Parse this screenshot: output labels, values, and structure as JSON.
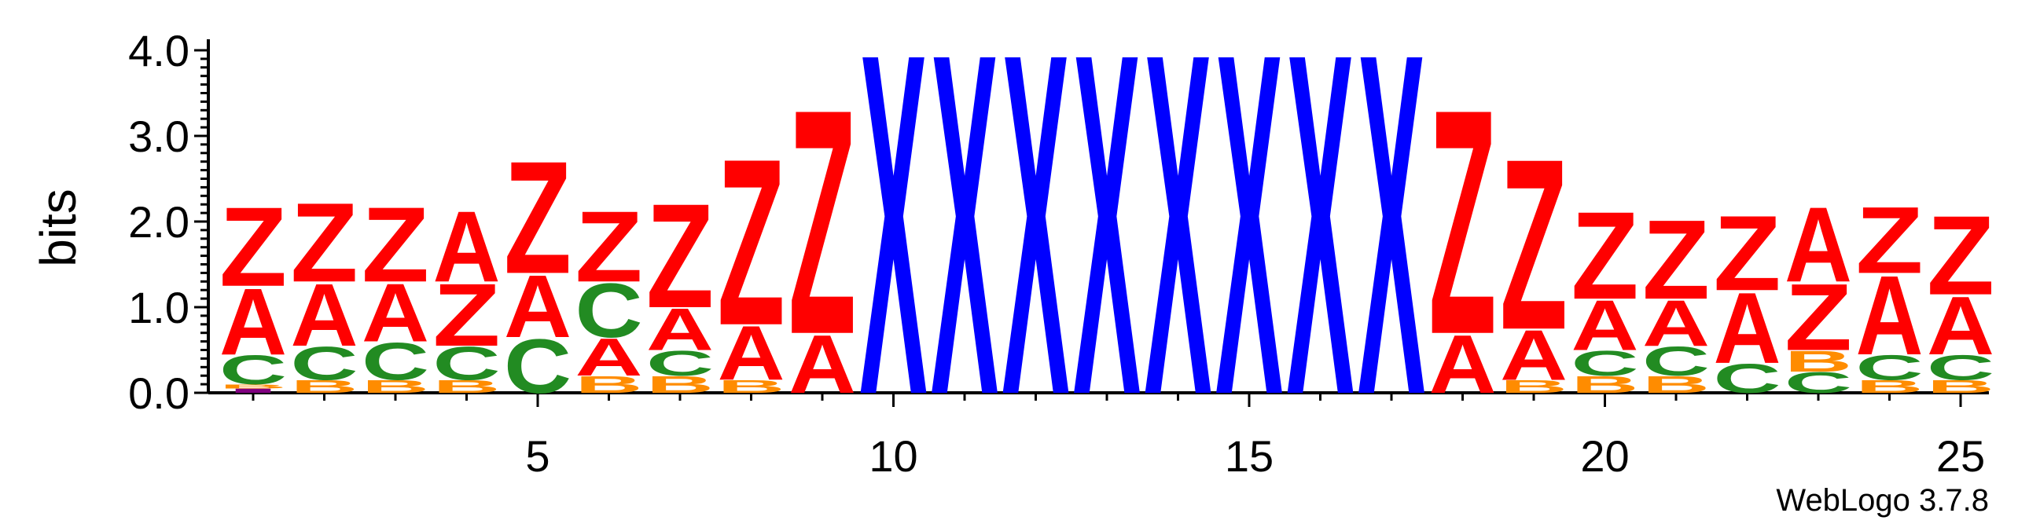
{
  "chart_data": {
    "type": "sequence-logo",
    "title": "",
    "xlabel": "",
    "ylabel": "bits",
    "ylim": [
      0,
      4.1
    ],
    "y_ticks": [
      "0.0",
      "1.0",
      "2.0",
      "3.0",
      "4.0"
    ],
    "x_ticks": [
      "5",
      "10",
      "15",
      "20",
      "25"
    ],
    "footer": "WebLogo 3.7.8",
    "colors": {
      "A": "#ff0000",
      "Z": "#ff0000",
      "C": "#228b22",
      "B": "#ff8c00",
      "X": "#0000ff",
      "I": "#800080"
    },
    "positions": [
      {
        "pos": 1,
        "stack": [
          {
            "l": "I",
            "h": 0.05
          },
          {
            "l": "B",
            "h": 0.05
          },
          {
            "l": "C",
            "h": 0.35
          },
          {
            "l": "A",
            "h": 0.8
          },
          {
            "l": "Z",
            "h": 0.95
          }
        ]
      },
      {
        "pos": 2,
        "stack": [
          {
            "l": "B",
            "h": 0.15
          },
          {
            "l": "C",
            "h": 0.4
          },
          {
            "l": "A",
            "h": 0.75
          },
          {
            "l": "Z",
            "h": 0.95
          }
        ]
      },
      {
        "pos": 3,
        "stack": [
          {
            "l": "B",
            "h": 0.15
          },
          {
            "l": "C",
            "h": 0.45
          },
          {
            "l": "A",
            "h": 0.7
          },
          {
            "l": "Z",
            "h": 0.9
          }
        ]
      },
      {
        "pos": 4,
        "stack": [
          {
            "l": "B",
            "h": 0.15
          },
          {
            "l": "C",
            "h": 0.4
          },
          {
            "l": "Z",
            "h": 0.75
          },
          {
            "l": "A",
            "h": 0.85
          }
        ]
      },
      {
        "pos": 5,
        "stack": [
          {
            "l": "C",
            "h": 0.65
          },
          {
            "l": "A",
            "h": 0.75
          },
          {
            "l": "Z",
            "h": 1.35
          }
        ]
      },
      {
        "pos": 6,
        "stack": [
          {
            "l": "B",
            "h": 0.2
          },
          {
            "l": "A",
            "h": 0.45
          },
          {
            "l": "C",
            "h": 0.65
          },
          {
            "l": "Z",
            "h": 0.85
          }
        ]
      },
      {
        "pos": 7,
        "stack": [
          {
            "l": "B",
            "h": 0.2
          },
          {
            "l": "C",
            "h": 0.3
          },
          {
            "l": "A",
            "h": 0.5
          },
          {
            "l": "Z",
            "h": 1.25
          }
        ]
      },
      {
        "pos": 8,
        "stack": [
          {
            "l": "B",
            "h": 0.15
          },
          {
            "l": "A",
            "h": 0.65
          },
          {
            "l": "Z",
            "h": 2.0
          }
        ]
      },
      {
        "pos": 9,
        "stack": [
          {
            "l": "A",
            "h": 0.7
          },
          {
            "l": "Z",
            "h": 2.7
          }
        ]
      },
      {
        "pos": 10,
        "stack": [
          {
            "l": "X",
            "h": 4.1
          }
        ]
      },
      {
        "pos": 11,
        "stack": [
          {
            "l": "X",
            "h": 4.1
          }
        ]
      },
      {
        "pos": 12,
        "stack": [
          {
            "l": "X",
            "h": 4.1
          }
        ]
      },
      {
        "pos": 13,
        "stack": [
          {
            "l": "X",
            "h": 4.1
          }
        ]
      },
      {
        "pos": 14,
        "stack": [
          {
            "l": "X",
            "h": 4.1
          }
        ]
      },
      {
        "pos": 15,
        "stack": [
          {
            "l": "X",
            "h": 4.1
          }
        ]
      },
      {
        "pos": 16,
        "stack": [
          {
            "l": "X",
            "h": 4.1
          }
        ]
      },
      {
        "pos": 17,
        "stack": [
          {
            "l": "X",
            "h": 4.1
          }
        ]
      },
      {
        "pos": 18,
        "stack": [
          {
            "l": "A",
            "h": 0.7
          },
          {
            "l": "Z",
            "h": 2.7
          }
        ]
      },
      {
        "pos": 19,
        "stack": [
          {
            "l": "B",
            "h": 0.15
          },
          {
            "l": "A",
            "h": 0.6
          },
          {
            "l": "Z",
            "h": 2.05
          }
        ]
      },
      {
        "pos": 20,
        "stack": [
          {
            "l": "B",
            "h": 0.2
          },
          {
            "l": "C",
            "h": 0.3
          },
          {
            "l": "A",
            "h": 0.6
          },
          {
            "l": "Z",
            "h": 1.05
          }
        ]
      },
      {
        "pos": 21,
        "stack": [
          {
            "l": "B",
            "h": 0.2
          },
          {
            "l": "C",
            "h": 0.35
          },
          {
            "l": "A",
            "h": 0.55
          },
          {
            "l": "Z",
            "h": 0.95
          }
        ]
      },
      {
        "pos": 22,
        "stack": [
          {
            "l": "C",
            "h": 0.35
          },
          {
            "l": "A",
            "h": 0.85
          },
          {
            "l": "Z",
            "h": 0.9
          }
        ]
      },
      {
        "pos": 23,
        "stack": [
          {
            "l": "C",
            "h": 0.25
          },
          {
            "l": "B",
            "h": 0.25
          },
          {
            "l": "Z",
            "h": 0.8
          },
          {
            "l": "A",
            "h": 0.9
          }
        ]
      },
      {
        "pos": 24,
        "stack": [
          {
            "l": "B",
            "h": 0.15
          },
          {
            "l": "C",
            "h": 0.3
          },
          {
            "l": "A",
            "h": 0.95
          },
          {
            "l": "Z",
            "h": 0.8
          }
        ]
      },
      {
        "pos": 25,
        "stack": [
          {
            "l": "B",
            "h": 0.15
          },
          {
            "l": "C",
            "h": 0.3
          },
          {
            "l": "A",
            "h": 0.7
          },
          {
            "l": "Z",
            "h": 0.95
          }
        ]
      }
    ]
  }
}
